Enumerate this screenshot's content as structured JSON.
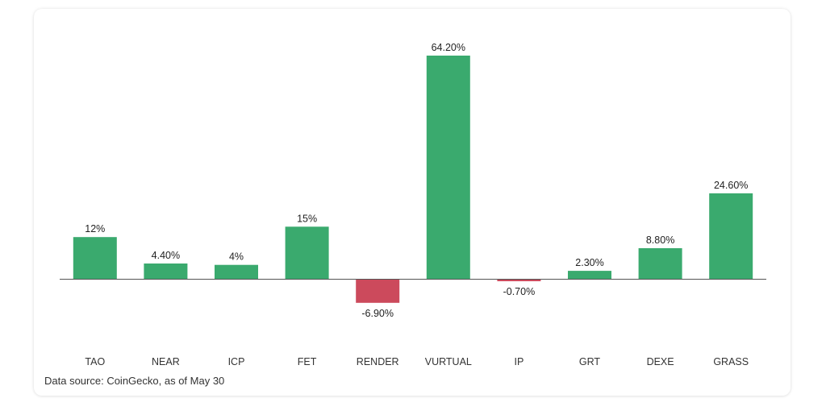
{
  "chart_data": {
    "type": "bar",
    "categories": [
      "TAO",
      "NEAR",
      "ICP",
      "FET",
      "RENDER",
      "VURTUAL",
      "IP",
      "GRT",
      "DEXE",
      "GRASS"
    ],
    "values": [
      12,
      4.4,
      4,
      15,
      -6.9,
      64.2,
      -0.7,
      2.3,
      8.8,
      24.6
    ],
    "value_labels": [
      "12%",
      "4.40%",
      "4%",
      "15%",
      "-6.90%",
      "64.20%",
      "-0.70%",
      "2.30%",
      "8.80%",
      "24.60%"
    ],
    "title": "",
    "xlabel": "",
    "ylabel": "",
    "ylim": [
      -22,
      64.2
    ],
    "grid": false,
    "colors": {
      "positive": "#3aaa6e",
      "negative": "#cc4a5c",
      "baseline": "#555555"
    }
  },
  "footer": {
    "source": "Data source: CoinGecko, as of May 30"
  }
}
